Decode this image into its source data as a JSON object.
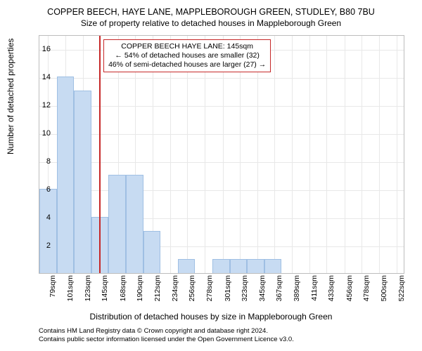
{
  "title_main": "COPPER BEECH, HAYE LANE, MAPPLEBOROUGH GREEN, STUDLEY, B80 7BU",
  "title_sub": "Size of property relative to detached houses in Mappleborough Green",
  "ylabel": "Number of detached properties",
  "xlabel": "Distribution of detached houses by size in Mappleborough Green",
  "credits_line1": "Contains HM Land Registry data © Crown copyright and database right 2024.",
  "credits_line2": "Contains public sector information licensed under the Open Government Licence v3.0.",
  "annotation": {
    "line1": "COPPER BEECH HAYE LANE: 145sqm",
    "line2": "← 54% of detached houses are smaller (32)",
    "line3": "46% of semi-detached houses are larger (27) →",
    "border_color": "#c62828",
    "background_color": "#ffffff"
  },
  "chart": {
    "type": "histogram",
    "background_color": "#ffffff",
    "grid_color": "#e8e8e8",
    "border_color": "#bdbdbd",
    "bar_color": "#c7dbf2",
    "bar_border_color": "#9fbfe3",
    "marker_color": "#c62828",
    "marker_value": 145,
    "ylim": [
      0,
      17
    ],
    "yticks": [
      2,
      4,
      6,
      8,
      10,
      12,
      14,
      16
    ],
    "xlim": [
      68,
      533
    ],
    "xticks": [
      79,
      101,
      123,
      145,
      168,
      190,
      212,
      234,
      256,
      278,
      301,
      323,
      345,
      367,
      389,
      411,
      433,
      456,
      478,
      500,
      522
    ],
    "bar_bin_width": 22,
    "bars": [
      {
        "x": 68,
        "h": 6
      },
      {
        "x": 90,
        "h": 14
      },
      {
        "x": 112,
        "h": 13
      },
      {
        "x": 134,
        "h": 4
      },
      {
        "x": 156,
        "h": 7
      },
      {
        "x": 178,
        "h": 7
      },
      {
        "x": 200,
        "h": 3
      },
      {
        "x": 222,
        "h": 0
      },
      {
        "x": 244,
        "h": 1
      },
      {
        "x": 266,
        "h": 0
      },
      {
        "x": 288,
        "h": 1
      },
      {
        "x": 310,
        "h": 1
      },
      {
        "x": 332,
        "h": 1
      },
      {
        "x": 354,
        "h": 1
      },
      {
        "x": 376,
        "h": 0
      },
      {
        "x": 398,
        "h": 0
      },
      {
        "x": 420,
        "h": 0
      },
      {
        "x": 442,
        "h": 0
      },
      {
        "x": 464,
        "h": 0
      },
      {
        "x": 486,
        "h": 0
      },
      {
        "x": 508,
        "h": 0
      }
    ]
  }
}
